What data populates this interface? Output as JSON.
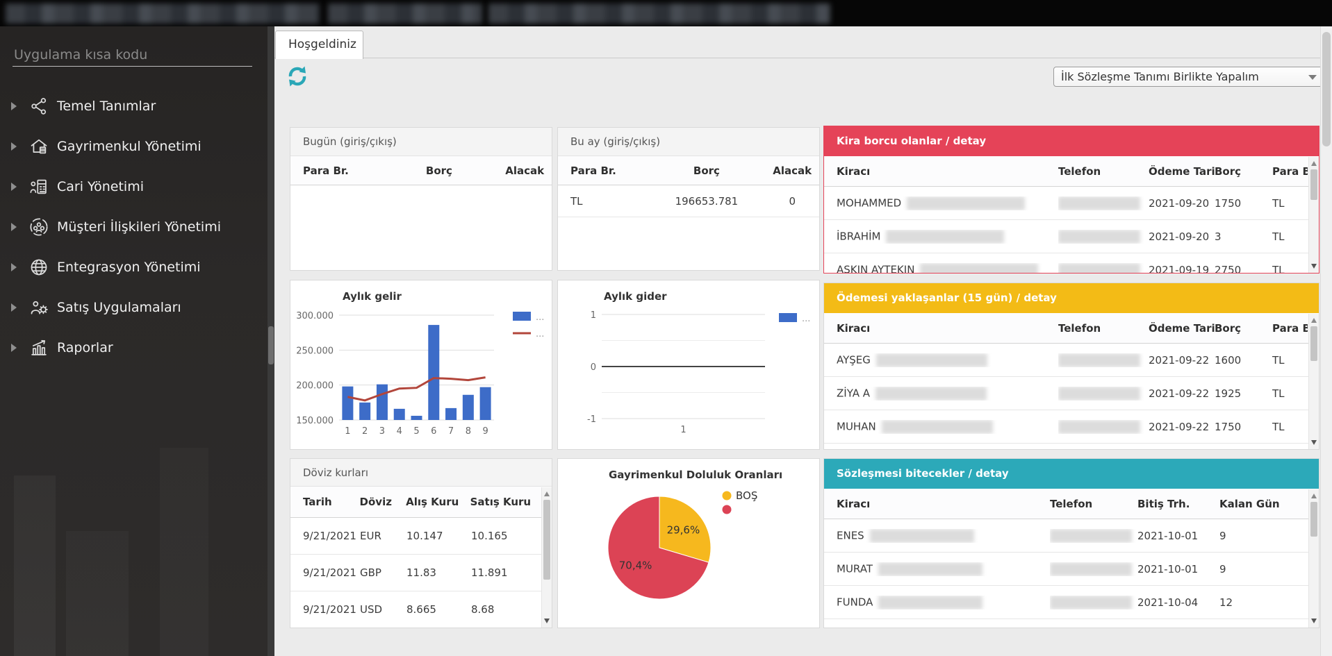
{
  "topbar": {
    "redacted_tab_count": 3
  },
  "sidebar": {
    "search_placeholder": "Uygulama kısa kodu",
    "items": [
      {
        "key": "temel-tanimlar",
        "label": "Temel Tanımlar",
        "icon": "hierarchy-icon"
      },
      {
        "key": "gayrimenkul-yonetimi",
        "label": "Gayrimenkul Yönetimi",
        "icon": "house-icon"
      },
      {
        "key": "cari-yonetimi",
        "label": "Cari Yönetimi",
        "icon": "accounting-icon"
      },
      {
        "key": "musteri-iliskileri-yonetimi",
        "label": "Müşteri İlişkileri Yönetimi",
        "icon": "customers-icon"
      },
      {
        "key": "entegrasyon-yonetimi",
        "label": "Entegrasyon Yönetimi",
        "icon": "globe-icon"
      },
      {
        "key": "satis-uygulamalari",
        "label": "Satış Uygulamaları",
        "icon": "sales-gear-icon"
      },
      {
        "key": "raporlar",
        "label": "Raporlar",
        "icon": "report-chart-icon"
      }
    ]
  },
  "tab": {
    "label": "Hoşgeldiniz"
  },
  "toolbar": {
    "dropdown_value": "İlk Sözleşme Tanımı Birlikte Yapalım"
  },
  "colors": {
    "rent_header": "#e54358",
    "upcoming_header": "#f3bb16",
    "contracts_header": "#2ca9b9",
    "refresh_icon": "#2aa7b7"
  },
  "panels": {
    "today": {
      "title": "Bugün (giriş/çıkış)",
      "columns": [
        "Para Br.",
        "Borç",
        "Alacak"
      ],
      "rows": []
    },
    "month": {
      "title": "Bu ay (giriş/çıkış)",
      "columns": [
        "Para Br.",
        "Borç",
        "Alacak"
      ],
      "rows": [
        {
          "currency": "TL",
          "debit": "196653.781",
          "credit": "0"
        }
      ]
    },
    "rent_debt": {
      "title": "Kira borcu olanlar / detay",
      "columns": [
        "Kiracı",
        "Telefon",
        "Ödeme Tarihi",
        "Borç",
        "Para Br."
      ],
      "rows": [
        {
          "tenant_prefix": "MOHAMMED",
          "tenant_redacted": true,
          "phone_redacted": true,
          "date": "2021-09-20",
          "amount": "1750",
          "currency": "TL"
        },
        {
          "tenant_prefix": "İBRAHİM",
          "tenant_redacted": true,
          "phone_redacted": true,
          "date": "2021-09-20",
          "amount": "3",
          "currency": "TL"
        },
        {
          "tenant_prefix": "AŞKIN AYTEKIN",
          "tenant_redacted": true,
          "phone_redacted": true,
          "date": "2021-09-19",
          "amount": "2750",
          "currency": "TL"
        }
      ]
    },
    "upcoming": {
      "title": "Ödemesi yaklaşanlar (15 gün) / detay",
      "columns": [
        "Kiracı",
        "Telefon",
        "Ödeme Tarihi",
        "Borç",
        "Para Br."
      ],
      "rows": [
        {
          "tenant_prefix": "AYŞEG",
          "tenant_redacted": true,
          "phone_redacted": true,
          "date": "2021-09-22",
          "amount": "1600",
          "currency": "TL"
        },
        {
          "tenant_prefix": "ZİYA A",
          "tenant_redacted": true,
          "phone_redacted": true,
          "date": "2021-09-22",
          "amount": "1925",
          "currency": "TL"
        },
        {
          "tenant_prefix": "MUHAN",
          "tenant_redacted": true,
          "phone_redacted": true,
          "date": "2021-09-22",
          "amount": "1750",
          "currency": "TL"
        }
      ]
    },
    "contracts": {
      "title": "Sözleşmesi bitecekler / detay",
      "columns": [
        "Kiracı",
        "Telefon",
        "Bitiş Trh.",
        "Kalan Gün"
      ],
      "rows": [
        {
          "tenant_prefix": "ENES",
          "tenant_redacted": true,
          "phone_redacted": true,
          "end_date": "2021-10-01",
          "days_left": "9"
        },
        {
          "tenant_prefix": "MURAT",
          "tenant_redacted": true,
          "phone_redacted": true,
          "end_date": "2021-10-01",
          "days_left": "9"
        },
        {
          "tenant_prefix": "FUNDA",
          "tenant_redacted": true,
          "phone_redacted": true,
          "end_date": "2021-10-04",
          "days_left": "12"
        }
      ]
    },
    "currency": {
      "title": "Döviz kurları",
      "columns": [
        "Tarih",
        "Döviz",
        "Alış Kuru",
        "Satış Kuru"
      ],
      "rows": [
        {
          "date": "9/21/2021",
          "code": "EUR",
          "buy": "10.147",
          "sell": "10.165"
        },
        {
          "date": "9/21/2021",
          "code": "GBP",
          "buy": "11.83",
          "sell": "11.891"
        },
        {
          "date": "9/21/2021",
          "code": "USD",
          "buy": "8.665",
          "sell": "8.68"
        }
      ]
    }
  },
  "chart_data": [
    {
      "type": "bar",
      "title": "Aylık gelir",
      "categories": [
        "1",
        "2",
        "3",
        "4",
        "5",
        "6",
        "7",
        "8",
        "9"
      ],
      "series": [
        {
          "name": "...",
          "kind": "bar",
          "color": "#3d6cc8",
          "values": [
            198000,
            175000,
            201000,
            166000,
            156000,
            286000,
            167000,
            186000,
            197000
          ]
        },
        {
          "name": "...",
          "kind": "line",
          "color": "#b2463b",
          "values": [
            183000,
            178000,
            187000,
            195000,
            196000,
            210000,
            209000,
            207000,
            211000
          ]
        }
      ],
      "ylim": [
        150000,
        300000
      ],
      "ytick_labels": [
        "150.000",
        "200.000",
        "250.000",
        "300.000"
      ],
      "grid": true,
      "legend_position": "right"
    },
    {
      "type": "bar",
      "title": "Aylık gider",
      "categories": [
        "1"
      ],
      "series": [
        {
          "name": "...",
          "kind": "bar",
          "color": "#3d6cc8",
          "values": []
        }
      ],
      "ylim": [
        -1,
        1
      ],
      "ytick_labels": [
        "-1",
        "0",
        "1"
      ],
      "ytick_minor": [
        -0.5,
        0.5
      ],
      "grid": true,
      "legend_position": "right"
    },
    {
      "type": "pie",
      "title": "Gayrimenkul Doluluk Oranları",
      "slices": [
        {
          "label": "BOŞ",
          "value": 29.6,
          "display": "29,6%",
          "color": "#f6b81e"
        },
        {
          "label": "",
          "value": 70.4,
          "display": "70,4%",
          "color": "#dc4355"
        }
      ],
      "legend_position": "right"
    }
  ]
}
